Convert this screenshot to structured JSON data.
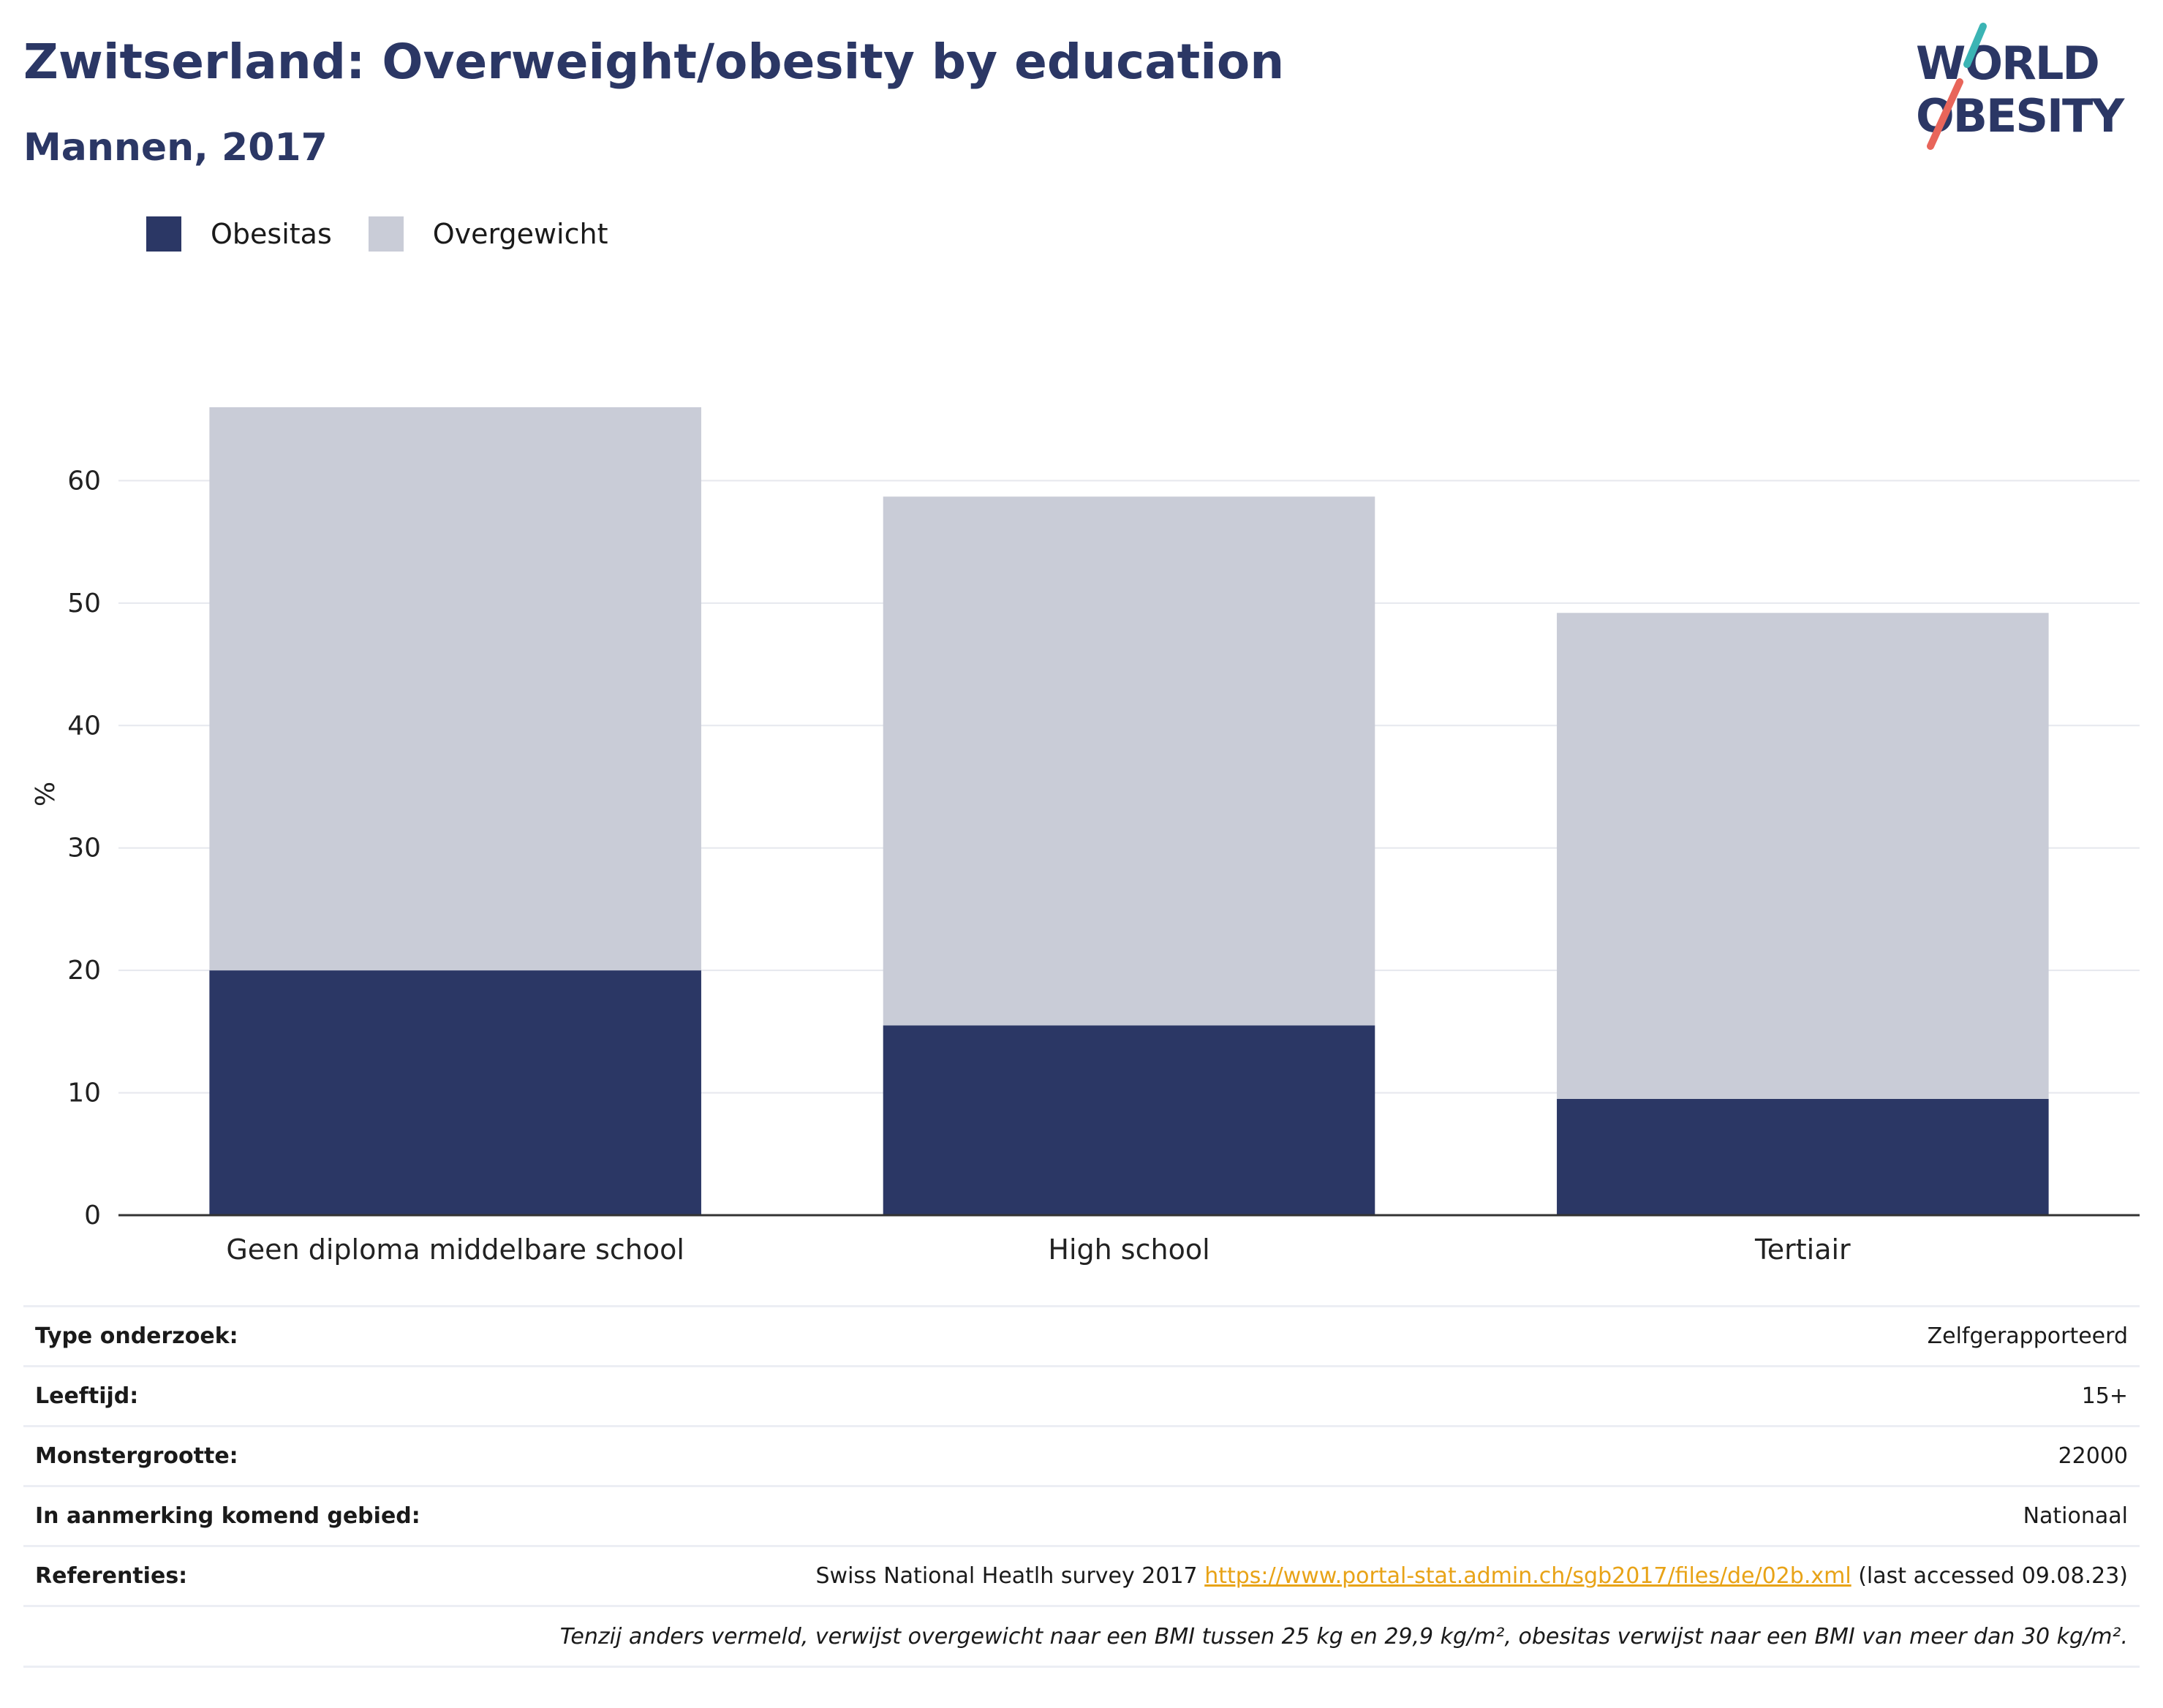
{
  "title": "Zwitserland: Overweight/obesity by education",
  "subtitle": "Mannen, 2017",
  "logo": {
    "line1": "WORLD",
    "line2": "OBESITY",
    "accent_teal": "#3bb4b4",
    "accent_red": "#e8655a",
    "color": "#2b3765"
  },
  "legend": [
    {
      "label": "Obesitas",
      "color": "#2b3765"
    },
    {
      "label": "Overgewicht",
      "color": "#c9ccd7"
    }
  ],
  "chart_data": {
    "type": "bar",
    "stacked": true,
    "categories": [
      "Geen diploma middelbare school",
      "High school",
      "Tertiair"
    ],
    "series": [
      {
        "name": "Obesitas",
        "values": [
          20.0,
          15.5,
          9.5
        ],
        "color": "#2b3765"
      },
      {
        "name": "Overgewicht",
        "values": [
          46.0,
          43.2,
          39.7
        ],
        "color": "#c9ccd7"
      }
    ],
    "ylabel": "%",
    "ylim": [
      0,
      70
    ],
    "yticks": [
      0,
      10,
      20,
      30,
      40,
      50,
      60
    ],
    "grid": true,
    "legend_position": "top-left"
  },
  "info": {
    "rows": [
      {
        "key": "Type onderzoek:",
        "value": "Zelfgerapporteerd"
      },
      {
        "key": "Leeftijd:",
        "value": "15+"
      },
      {
        "key": "Monstergrootte:",
        "value": "22000"
      },
      {
        "key": "In aanmerking komend gebied:",
        "value": "Nationaal"
      }
    ],
    "ref_key": "Referenties:",
    "ref_text": "Swiss National Heatlh survey 2017",
    "ref_link": "https://www.portal-stat.admin.ch/sgb2017/files/de/02b.xml",
    "ref_suffix": "(last accessed 09.08.23)",
    "note": "Tenzij anders vermeld, verwijst overgewicht naar een BMI tussen 25 kg en 29,9 kg/m², obesitas verwijst naar een BMI van meer dan 30 kg/m²."
  }
}
